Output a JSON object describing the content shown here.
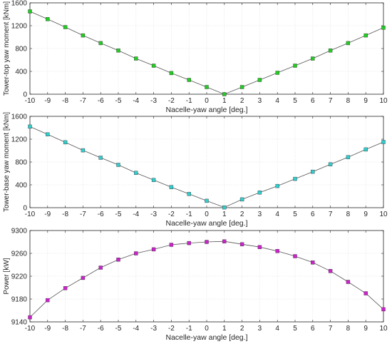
{
  "chart_data": [
    {
      "type": "line",
      "xlabel": "Nacelle-yaw angle [deg.]",
      "ylabel": "Tower-top yaw moment [kNm]",
      "x": [
        -10,
        -9,
        -8,
        -7,
        -6,
        -5,
        -4,
        -3,
        -2,
        -1,
        0,
        1,
        2,
        3,
        4,
        5,
        6,
        7,
        8,
        9,
        10
      ],
      "xlim": [
        -10,
        10
      ],
      "ylim": [
        0,
        1600
      ],
      "xticks": [
        -10,
        -9,
        -8,
        -7,
        -6,
        -5,
        -4,
        -3,
        -2,
        -1,
        0,
        1,
        2,
        3,
        4,
        5,
        6,
        7,
        8,
        9,
        10
      ],
      "yticks": [
        0,
        400,
        800,
        1200,
        1600
      ],
      "grid": true,
      "series": [
        {
          "color": "#22cc22",
          "line_color": "#555555",
          "marker": "square",
          "values": [
            1450,
            1315,
            1175,
            1030,
            895,
            765,
            625,
            500,
            370,
            250,
            125,
            0,
            125,
            250,
            375,
            500,
            625,
            765,
            895,
            1030,
            1165
          ]
        }
      ]
    },
    {
      "type": "line",
      "xlabel": "Nacelle-yaw angle [deg.]",
      "ylabel": "Tower-base yaw moment [kNm]",
      "x": [
        -10,
        -9,
        -8,
        -7,
        -6,
        -5,
        -4,
        -3,
        -2,
        -1,
        0,
        1,
        2,
        3,
        4,
        5,
        6,
        7,
        8,
        9,
        10
      ],
      "xlim": [
        -10,
        10
      ],
      "ylim": [
        0,
        1600
      ],
      "xticks": [
        -10,
        -9,
        -8,
        -7,
        -6,
        -5,
        -4,
        -3,
        -2,
        -1,
        0,
        1,
        2,
        3,
        4,
        5,
        6,
        7,
        8,
        9,
        10
      ],
      "yticks": [
        0,
        400,
        800,
        1200,
        1600
      ],
      "grid": true,
      "series": [
        {
          "color": "#33cccc",
          "line_color": "#555555",
          "marker": "square",
          "values": [
            1420,
            1285,
            1145,
            1005,
            875,
            750,
            610,
            485,
            360,
            240,
            120,
            5,
            145,
            265,
            380,
            505,
            630,
            760,
            885,
            1020,
            1150
          ]
        }
      ]
    },
    {
      "type": "line",
      "xlabel": "Nacelle-yaw angle [deg.]",
      "ylabel": "Power [kW]",
      "x": [
        -10,
        -9,
        -8,
        -7,
        -6,
        -5,
        -4,
        -3,
        -2,
        -1,
        0,
        1,
        2,
        3,
        4,
        5,
        6,
        7,
        8,
        9,
        10
      ],
      "xlim": [
        -10,
        10
      ],
      "ylim": [
        9140,
        9300
      ],
      "xticks": [
        -10,
        -9,
        -8,
        -7,
        -6,
        -5,
        -4,
        -3,
        -2,
        -1,
        0,
        1,
        2,
        3,
        4,
        5,
        6,
        7,
        8,
        9,
        10
      ],
      "yticks": [
        9140,
        9180,
        9220,
        9260,
        9300
      ],
      "grid": true,
      "series": [
        {
          "color": "#cc22cc",
          "line_color": "#555555",
          "marker": "square",
          "values": [
            9148,
            9178,
            9199,
            9217,
            9235,
            9249,
            9260,
            9267,
            9275,
            9278,
            9280,
            9281,
            9276,
            9271,
            9264,
            9255,
            9244,
            9229,
            9210,
            9190,
            9162
          ]
        }
      ]
    }
  ]
}
